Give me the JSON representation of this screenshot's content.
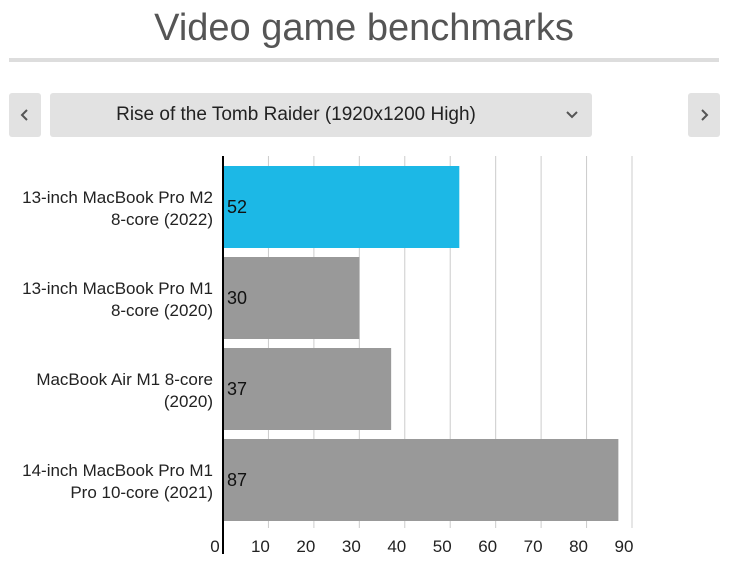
{
  "header": {
    "title": "Video game benchmarks"
  },
  "selector": {
    "selected": "Rise of the Tomb Raider (1920x1200 High)",
    "prev_icon": "chevron-left-icon",
    "next_icon": "chevron-right-icon",
    "dropdown_icon": "chevron-down-icon"
  },
  "colors": {
    "highlight": "#1cb8e6",
    "bar": "#999999",
    "gridline": "#cccccc",
    "axis": "#000000",
    "button_bg": "#e2e2e2"
  },
  "chart_data": {
    "type": "bar",
    "orientation": "horizontal",
    "categories": [
      [
        "13-inch MacBook Pro M2",
        "8-core (2022)"
      ],
      [
        "13-inch MacBook Pro M1",
        "8-core (2020)"
      ],
      [
        "MacBook Air M1 8-core",
        "(2020)"
      ],
      [
        "14-inch MacBook Pro M1",
        "Pro 10-core (2021)"
      ]
    ],
    "values": [
      52,
      30,
      37,
      87
    ],
    "highlighted_index": 0,
    "xlim": [
      0,
      90
    ],
    "xticks": [
      0,
      10,
      20,
      30,
      40,
      50,
      60,
      70,
      80,
      90
    ],
    "grid": true,
    "data_labels": true
  }
}
